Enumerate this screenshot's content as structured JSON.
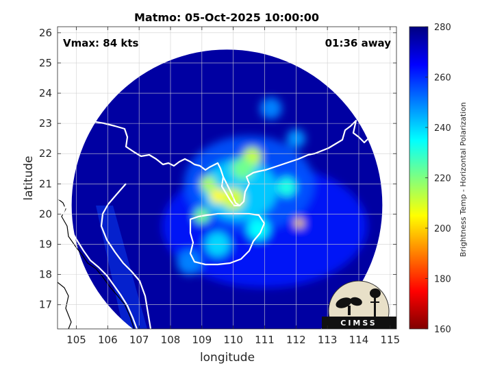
{
  "chart_data": {
    "type": "heatmap",
    "title": "Matmo: 05-Oct-2025 10:00:00",
    "xlabel": "longitude",
    "ylabel": "latitude",
    "xlim": [
      104.4,
      115.2
    ],
    "ylim": [
      16.2,
      26.2
    ],
    "xticks": [
      105,
      106,
      107,
      108,
      109,
      110,
      111,
      112,
      113,
      114,
      115
    ],
    "yticks": [
      17,
      18,
      19,
      20,
      21,
      22,
      23,
      24,
      25,
      26
    ],
    "grid": true,
    "annotations": {
      "vmax": "Vmax: 84 kts",
      "time_away": "01:36 away"
    },
    "colorbar": {
      "label": "Brightness Temp - Horizontal Polarization",
      "range": [
        160,
        280
      ],
      "ticks": [
        160,
        180,
        200,
        220,
        240,
        260,
        280
      ],
      "colormap": "jet"
    },
    "swath": {
      "center_lon": 109.8,
      "center_lat": 20.3,
      "radius_deg": 4.95,
      "background_value": 276
    },
    "storm_features": [
      {
        "lon": 110.0,
        "lat": 20.5,
        "value": 210,
        "radius": 0.35
      },
      {
        "lon": 109.5,
        "lat": 20.6,
        "value": 205,
        "radius": 0.25
      },
      {
        "lon": 109.2,
        "lat": 21.0,
        "value": 215,
        "radius": 0.25
      },
      {
        "lon": 110.6,
        "lat": 21.9,
        "value": 212,
        "radius": 0.3
      },
      {
        "lon": 110.3,
        "lat": 21.5,
        "value": 222,
        "radius": 0.35
      },
      {
        "lon": 112.1,
        "lat": 19.7,
        "value": 200,
        "radius": 0.15
      },
      {
        "lon": 111.7,
        "lat": 20.9,
        "value": 232,
        "radius": 0.3
      },
      {
        "lon": 109.0,
        "lat": 19.95,
        "value": 222,
        "radius": 0.25
      },
      {
        "lon": 110.8,
        "lat": 19.5,
        "value": 235,
        "radius": 0.35
      },
      {
        "lon": 112.0,
        "lat": 22.5,
        "value": 248,
        "radius": 0.3
      },
      {
        "lon": 111.2,
        "lat": 23.5,
        "value": 250,
        "radius": 0.35
      },
      {
        "lon": 108.6,
        "lat": 18.4,
        "value": 250,
        "radius": 0.4
      },
      {
        "lon": 109.5,
        "lat": 19.0,
        "value": 240,
        "radius": 0.4
      }
    ],
    "logo": "CIMSS"
  }
}
